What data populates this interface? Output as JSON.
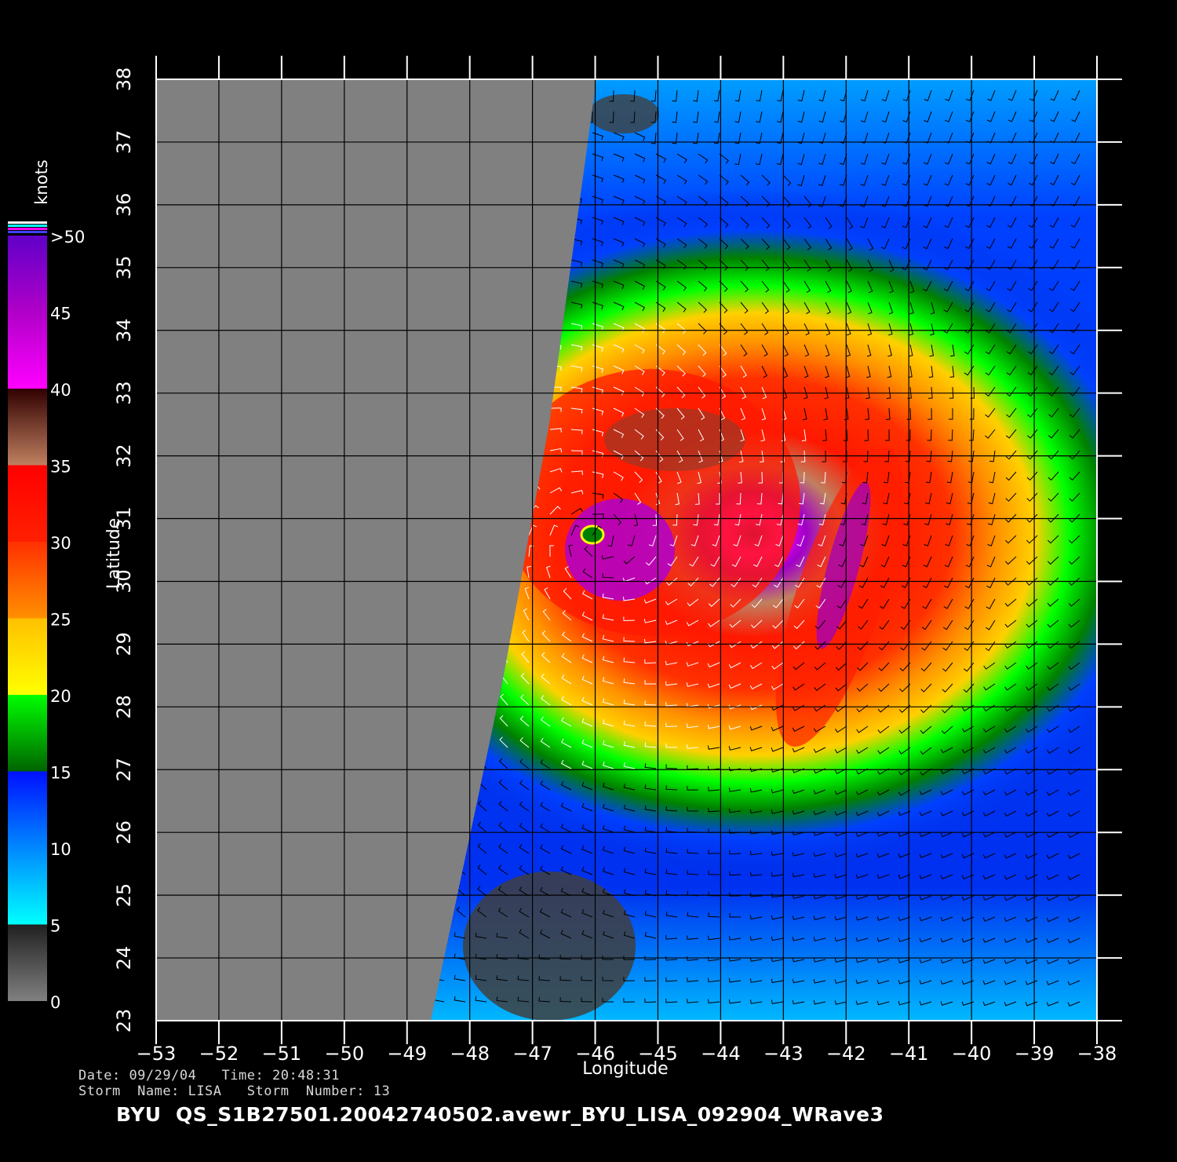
{
  "map": {
    "lon_range": [
      -53,
      -38
    ],
    "lat_range": [
      23,
      38
    ],
    "lon_ticks": [
      "−53",
      "−52",
      "−51",
      "−50",
      "−49",
      "−48",
      "−47",
      "−46",
      "−45",
      "−44",
      "−43",
      "−42",
      "−41",
      "−40",
      "−39",
      "−38"
    ],
    "lat_ticks": [
      "23",
      "24",
      "25",
      "26",
      "27",
      "28",
      "29",
      "30",
      "31",
      "32",
      "33",
      "34",
      "35",
      "36",
      "37",
      "38"
    ],
    "xlabel": "Longitude",
    "ylabel": "Latitude",
    "grid": true,
    "no_data_color": "#808080",
    "storm_center": {
      "lon": -45.9,
      "lat": 30.7
    }
  },
  "colorbar": {
    "unit": "knots",
    "labels": [
      "0",
      "5",
      "10",
      "15",
      "20",
      "25",
      "30",
      "35",
      "40",
      "45",
      ">50"
    ],
    "stops": [
      {
        "value": 0,
        "color": "#808080"
      },
      {
        "value": 5,
        "color": "#202020"
      },
      {
        "value": 5,
        "color": "#00ffff"
      },
      {
        "value": 10,
        "color": "#0088ff"
      },
      {
        "value": 15,
        "color": "#0010ff"
      },
      {
        "value": 15,
        "color": "#006400"
      },
      {
        "value": 20,
        "color": "#00ff00"
      },
      {
        "value": 20,
        "color": "#ffff00"
      },
      {
        "value": 25,
        "color": "#ffc000"
      },
      {
        "value": 25,
        "color": "#ff9000"
      },
      {
        "value": 30,
        "color": "#ff3000"
      },
      {
        "value": 30,
        "color": "#ff2000"
      },
      {
        "value": 35,
        "color": "#ff0000"
      },
      {
        "value": 35,
        "color": "#c08060"
      },
      {
        "value": 40,
        "color": "#300000"
      },
      {
        "value": 40,
        "color": "#ff00ff"
      },
      {
        "value": 45,
        "color": "#b000c8"
      },
      {
        "value": 50,
        "color": "#6000c8"
      }
    ]
  },
  "info": {
    "date_label": "Date:",
    "date": "09/29/04",
    "time_label": "Time:",
    "time": "20:48:31",
    "storm_name_label": "Storm  Name:",
    "storm_name": "LISA",
    "storm_number_label": "Storm  Number:",
    "storm_number": "13"
  },
  "product_id": "BYU  QS_S1B27501.20042740502.avewr_BYU_LISA_092904_WRave3"
}
